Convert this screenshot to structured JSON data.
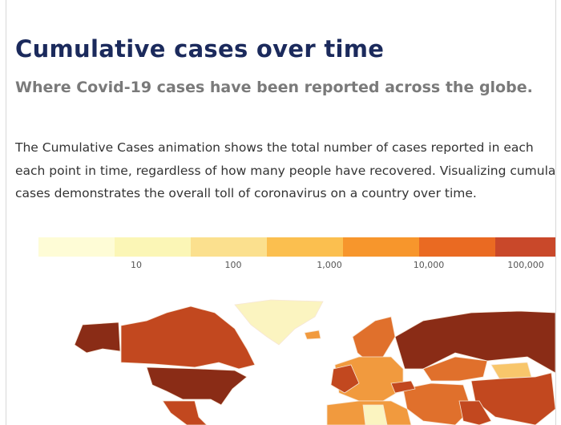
{
  "header": {
    "title": "Cumulative cases over time",
    "subtitle": "Where Covid-19 cases have been reported across the globe."
  },
  "description": {
    "lines": [
      "The Cumulative Cases animation shows the total number of cases reported in each",
      "each point in time, regardless of how many people have recovered. Visualizing cumulative",
      "cases demonstrates the overall toll of coronavirus on a country over time."
    ]
  },
  "legend": {
    "colors": [
      "#fefcd6",
      "#fbf6b6",
      "#fbe08e",
      "#fbbf4f",
      "#f7962c",
      "#ea6a22",
      "#c9482a"
    ],
    "ticks": [
      "10",
      "100",
      "1,000",
      "10,000",
      "100,000"
    ]
  },
  "map": {
    "colors": {
      "darkest": "#8a2c16",
      "dark": "#c2481f",
      "mid": "#e0702c",
      "orange": "#f19a3e",
      "light": "#f8c66b",
      "pale": "#fbf4c0"
    }
  }
}
